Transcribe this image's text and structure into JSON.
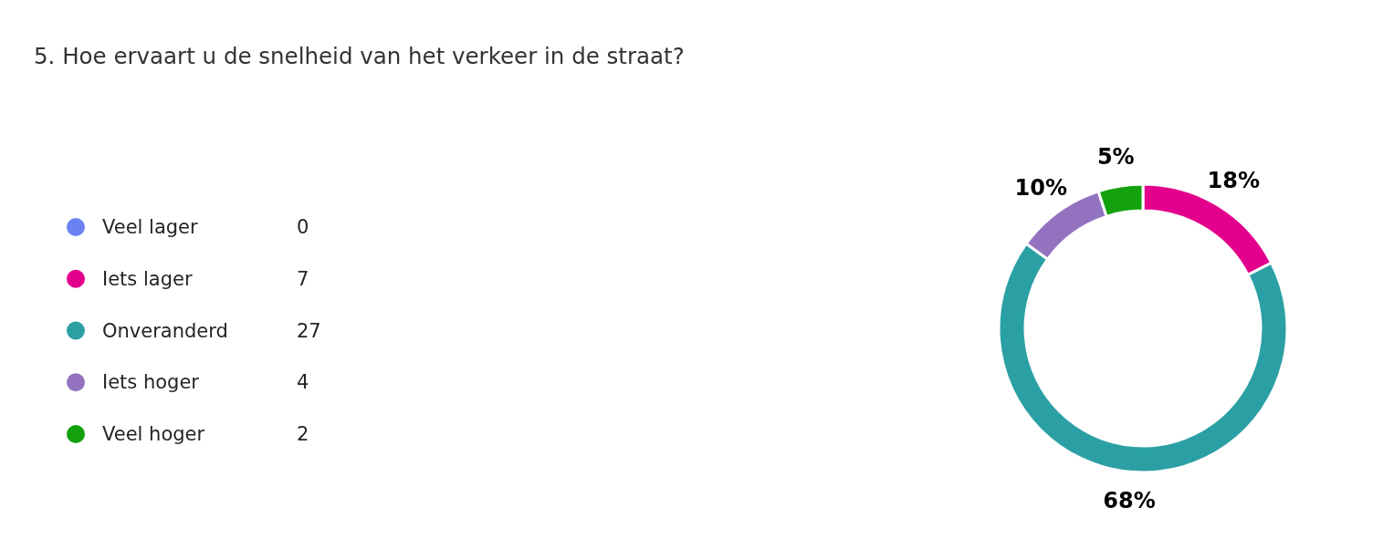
{
  "chart_data": {
    "type": "donut",
    "title": "5. Hoe ervaart u de snelheid van het verkeer in de straat?",
    "categories": [
      "Veel lager",
      "Iets lager",
      "Onveranderd",
      "Iets hoger",
      "Veel hoger"
    ],
    "values": [
      0,
      7,
      27,
      4,
      2
    ],
    "value_labels": [
      "0",
      "7",
      "27",
      "4",
      "2"
    ],
    "colors": [
      "#6b83f2",
      "#e3008c",
      "#2ba0a4",
      "#9373c0",
      "#13a10e"
    ],
    "annotations": [
      {
        "text": "18%",
        "x": "Iets lager"
      },
      {
        "text": "68%",
        "x": "Onveranderd"
      },
      {
        "text": "10%",
        "x": "Iets hoger"
      },
      {
        "text": "5%",
        "x": "Veel hoger"
      }
    ],
    "legend": "left"
  }
}
